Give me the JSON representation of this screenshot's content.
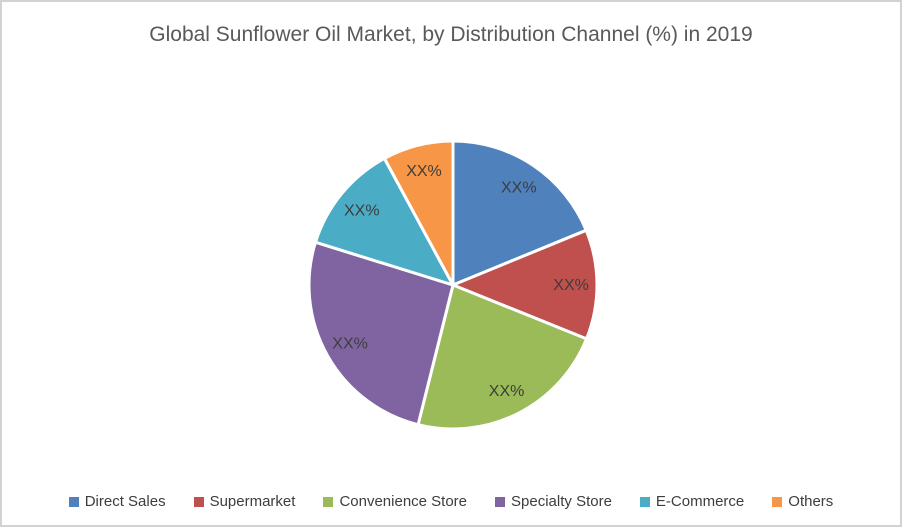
{
  "chart_data": {
    "type": "pie",
    "title": "Global Sunflower Oil Market, by Distribution Channel (%) in 2019",
    "categories": [
      "Direct Sales",
      "Supermarket",
      "Convenience Store",
      "Specialty Store",
      "E-Commerce",
      "Others"
    ],
    "values": [
      18.8,
      12.3,
      22.8,
      25.9,
      12.3,
      7.9
    ],
    "value_labels": [
      "XX%",
      "XX%",
      "XX%",
      "XX%",
      "XX%",
      "XX%"
    ],
    "colors": [
      "#4F81BD",
      "#C0504D",
      "#9BBB59",
      "#8064A2",
      "#4BACC6",
      "#F79646"
    ],
    "start_angle_deg": 0,
    "direction": "clockwise",
    "slice_separator_color": "#ffffff",
    "legend_position": "bottom",
    "title_color": "#595959",
    "label_color": "#3d3d3d"
  }
}
